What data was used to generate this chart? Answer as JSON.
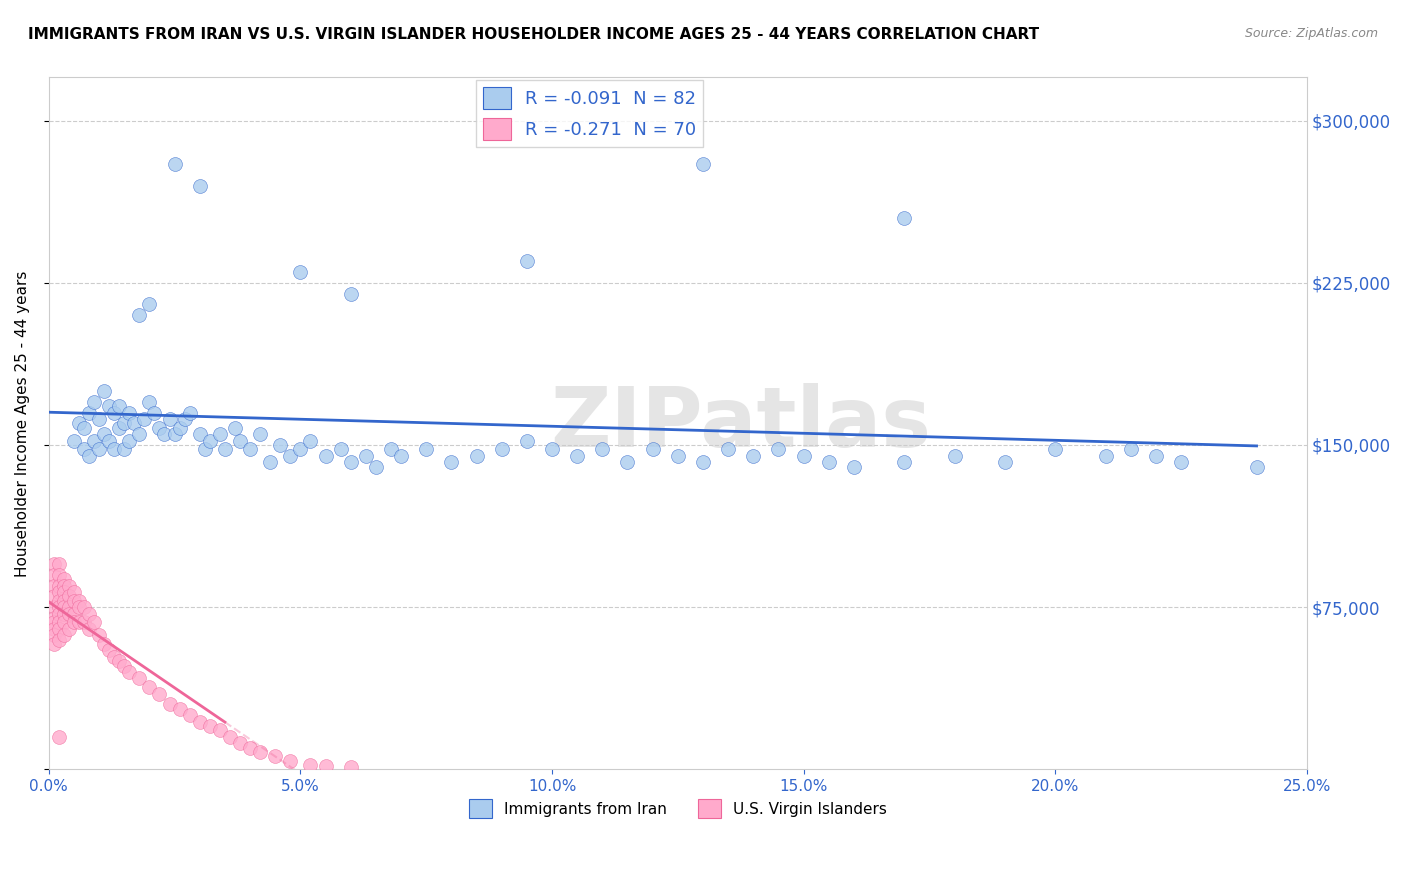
{
  "title": "IMMIGRANTS FROM IRAN VS U.S. VIRGIN ISLANDER HOUSEHOLDER INCOME AGES 25 - 44 YEARS CORRELATION CHART",
  "source": "Source: ZipAtlas.com",
  "ylabel": "Householder Income Ages 25 - 44 years",
  "xmin": 0.0,
  "xmax": 0.25,
  "ymin": 0,
  "ymax": 320000,
  "yticks": [
    0,
    75000,
    150000,
    225000,
    300000
  ],
  "ytick_labels": [
    "",
    "$75,000",
    "$150,000",
    "$225,000",
    "$300,000"
  ],
  "legend1_label": "R = -0.091  N = 82",
  "legend2_label": "R = -0.271  N = 70",
  "legend_bottom_label1": "Immigrants from Iran",
  "legend_bottom_label2": "U.S. Virgin Islanders",
  "series1_color": "#aaccee",
  "series2_color": "#ffaacc",
  "trendline1_color": "#3366cc",
  "trendline2_color": "#ee6699",
  "watermark": "ZIPatlas",
  "iran_x": [
    0.005,
    0.006,
    0.007,
    0.007,
    0.008,
    0.008,
    0.009,
    0.009,
    0.01,
    0.01,
    0.011,
    0.011,
    0.012,
    0.012,
    0.013,
    0.013,
    0.014,
    0.014,
    0.015,
    0.015,
    0.016,
    0.016,
    0.017,
    0.018,
    0.019,
    0.02,
    0.021,
    0.022,
    0.023,
    0.024,
    0.025,
    0.026,
    0.027,
    0.028,
    0.03,
    0.031,
    0.032,
    0.034,
    0.035,
    0.037,
    0.038,
    0.04,
    0.042,
    0.044,
    0.046,
    0.048,
    0.05,
    0.052,
    0.055,
    0.058,
    0.06,
    0.063,
    0.065,
    0.068,
    0.07,
    0.075,
    0.08,
    0.085,
    0.09,
    0.095,
    0.1,
    0.105,
    0.11,
    0.115,
    0.12,
    0.125,
    0.13,
    0.135,
    0.14,
    0.145,
    0.15,
    0.155,
    0.16,
    0.17,
    0.18,
    0.19,
    0.2,
    0.21,
    0.215,
    0.22,
    0.225,
    0.24
  ],
  "iran_y": [
    152000,
    160000,
    148000,
    158000,
    165000,
    145000,
    170000,
    152000,
    162000,
    148000,
    175000,
    155000,
    168000,
    152000,
    165000,
    148000,
    158000,
    168000,
    160000,
    148000,
    165000,
    152000,
    160000,
    155000,
    162000,
    170000,
    165000,
    158000,
    155000,
    162000,
    155000,
    158000,
    162000,
    165000,
    155000,
    148000,
    152000,
    155000,
    148000,
    158000,
    152000,
    148000,
    155000,
    142000,
    150000,
    145000,
    148000,
    152000,
    145000,
    148000,
    142000,
    145000,
    140000,
    148000,
    145000,
    148000,
    142000,
    145000,
    148000,
    152000,
    148000,
    145000,
    148000,
    142000,
    148000,
    145000,
    142000,
    148000,
    145000,
    148000,
    145000,
    142000,
    140000,
    142000,
    145000,
    142000,
    148000,
    145000,
    148000,
    145000,
    142000,
    140000
  ],
  "iran_outliers_x": [
    0.025,
    0.03,
    0.13,
    0.17,
    0.095,
    0.05,
    0.06,
    0.02,
    0.018
  ],
  "iran_outliers_y": [
    280000,
    270000,
    280000,
    255000,
    235000,
    230000,
    220000,
    215000,
    210000
  ],
  "usvi_x": [
    0.001,
    0.001,
    0.001,
    0.001,
    0.001,
    0.001,
    0.001,
    0.001,
    0.001,
    0.001,
    0.002,
    0.002,
    0.002,
    0.002,
    0.002,
    0.002,
    0.002,
    0.002,
    0.002,
    0.002,
    0.003,
    0.003,
    0.003,
    0.003,
    0.003,
    0.003,
    0.003,
    0.003,
    0.004,
    0.004,
    0.004,
    0.004,
    0.004,
    0.005,
    0.005,
    0.005,
    0.005,
    0.006,
    0.006,
    0.006,
    0.007,
    0.007,
    0.008,
    0.008,
    0.009,
    0.01,
    0.011,
    0.012,
    0.013,
    0.014,
    0.015,
    0.016,
    0.018,
    0.02,
    0.022,
    0.024,
    0.026,
    0.028,
    0.03,
    0.032,
    0.034,
    0.036,
    0.038,
    0.04,
    0.042,
    0.045,
    0.048,
    0.052,
    0.055,
    0.06
  ],
  "usvi_y": [
    95000,
    90000,
    85000,
    80000,
    75000,
    70000,
    68000,
    65000,
    62000,
    58000,
    95000,
    90000,
    85000,
    82000,
    78000,
    75000,
    72000,
    68000,
    65000,
    60000,
    88000,
    85000,
    82000,
    78000,
    75000,
    72000,
    68000,
    62000,
    85000,
    80000,
    75000,
    72000,
    65000,
    82000,
    78000,
    72000,
    68000,
    78000,
    75000,
    68000,
    75000,
    68000,
    72000,
    65000,
    68000,
    62000,
    58000,
    55000,
    52000,
    50000,
    48000,
    45000,
    42000,
    38000,
    35000,
    30000,
    28000,
    25000,
    22000,
    20000,
    18000,
    15000,
    12000,
    10000,
    8000,
    6000,
    4000,
    2000,
    1500,
    1000
  ],
  "usvi_outlier_x": [
    0.002
  ],
  "usvi_outlier_y": [
    15000
  ]
}
